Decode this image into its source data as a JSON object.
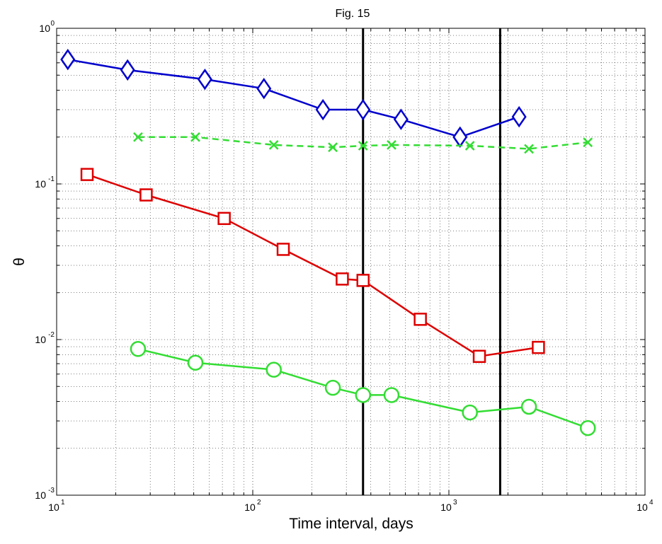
{
  "chart_data": {
    "type": "line",
    "title": "Fig. 15",
    "xlabel": "Time interval, days",
    "ylabel": "θ",
    "xscale": "log",
    "yscale": "log",
    "xlim": [
      10,
      10000
    ],
    "ylim": [
      0.001,
      1
    ],
    "grid": "major and minor, dotted",
    "x_ticks": [
      {
        "value": 10,
        "base": "10",
        "exp": "1"
      },
      {
        "value": 100,
        "base": "10",
        "exp": "2"
      },
      {
        "value": 1000,
        "base": "10",
        "exp": "3"
      },
      {
        "value": 10000,
        "base": "10",
        "exp": "4"
      }
    ],
    "y_ticks": [
      {
        "value": 0.001,
        "base": "10",
        "exp": "-3"
      },
      {
        "value": 0.01,
        "base": "10",
        "exp": "-2"
      },
      {
        "value": 0.1,
        "base": "10",
        "exp": "-1"
      },
      {
        "value": 1,
        "base": "10",
        "exp": "0"
      }
    ],
    "vertical_lines": [
      {
        "x": 365,
        "color": "#000000"
      },
      {
        "x": 1826,
        "color": "#000000"
      }
    ],
    "series": [
      {
        "color": "#0000cc",
        "line_style": "solid",
        "marker": "diamond",
        "points": [
          {
            "x": 11.4,
            "y": 0.63
          },
          {
            "x": 23,
            "y": 0.54
          },
          {
            "x": 57,
            "y": 0.47
          },
          {
            "x": 114,
            "y": 0.41
          },
          {
            "x": 228,
            "y": 0.3
          },
          {
            "x": 365,
            "y": 0.3
          },
          {
            "x": 570,
            "y": 0.26
          },
          {
            "x": 1140,
            "y": 0.2
          },
          {
            "x": 2280,
            "y": 0.27
          }
        ]
      },
      {
        "color": "#33dd33",
        "line_style": "dashed",
        "marker": "x",
        "points": [
          {
            "x": 26,
            "y": 0.2
          },
          {
            "x": 51,
            "y": 0.2
          },
          {
            "x": 128,
            "y": 0.178
          },
          {
            "x": 256,
            "y": 0.172
          },
          {
            "x": 365,
            "y": 0.176
          },
          {
            "x": 510,
            "y": 0.178
          },
          {
            "x": 1280,
            "y": 0.176
          },
          {
            "x": 2560,
            "y": 0.168
          },
          {
            "x": 5110,
            "y": 0.185
          }
        ]
      },
      {
        "color": "#dd0000",
        "line_style": "solid",
        "marker": "square",
        "points": [
          {
            "x": 14.3,
            "y": 0.115
          },
          {
            "x": 28.6,
            "y": 0.085
          },
          {
            "x": 71.5,
            "y": 0.06
          },
          {
            "x": 143,
            "y": 0.038
          },
          {
            "x": 286,
            "y": 0.0245
          },
          {
            "x": 365,
            "y": 0.024
          },
          {
            "x": 715,
            "y": 0.0135
          },
          {
            "x": 1430,
            "y": 0.0078
          },
          {
            "x": 2860,
            "y": 0.0089
          }
        ]
      },
      {
        "color": "#33dd33",
        "line_style": "solid",
        "marker": "circle",
        "points": [
          {
            "x": 26,
            "y": 0.0087
          },
          {
            "x": 51,
            "y": 0.0071
          },
          {
            "x": 128,
            "y": 0.0064
          },
          {
            "x": 256,
            "y": 0.0049
          },
          {
            "x": 365,
            "y": 0.0044
          },
          {
            "x": 510,
            "y": 0.0044
          },
          {
            "x": 1280,
            "y": 0.0034
          },
          {
            "x": 2560,
            "y": 0.0037
          },
          {
            "x": 5110,
            "y": 0.0027
          }
        ]
      }
    ]
  }
}
